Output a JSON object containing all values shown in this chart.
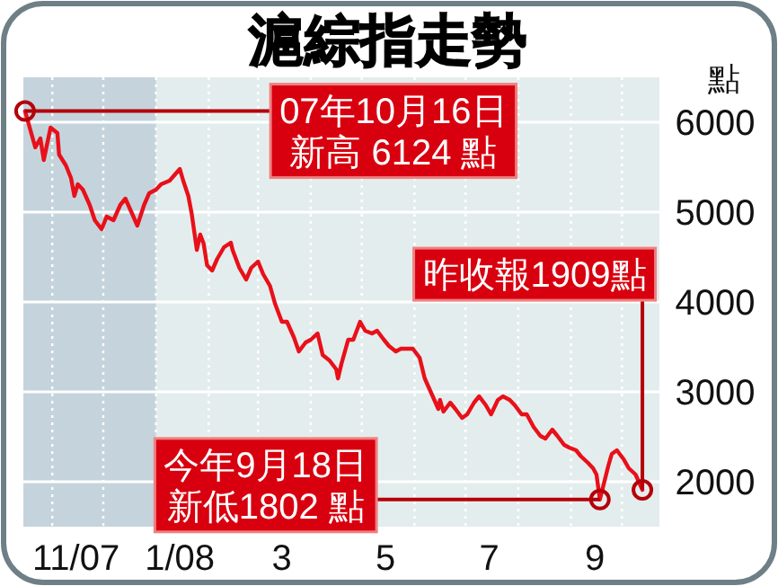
{
  "chart_data": {
    "type": "line",
    "title": "滬綜指走勢",
    "ylabel": "點",
    "xlim": [
      "2007-10-15",
      "2008-10-23"
    ],
    "ylim": [
      1500,
      6500
    ],
    "yticks": [
      2000,
      3000,
      4000,
      5000,
      6000
    ],
    "xticks": [
      {
        "value": "2007-11-01",
        "label": null
      },
      {
        "value": "2007-12-01",
        "label": null
      },
      {
        "value": "2008-01-01",
        "label": null
      },
      {
        "value": "2008-02-01",
        "label": null
      },
      {
        "value": "2008-03-01",
        "label": null
      },
      {
        "value": "2008-04-01",
        "label": null
      },
      {
        "value": "2008-05-01",
        "label": null
      },
      {
        "value": "2008-06-01",
        "label": null
      },
      {
        "value": "2008-07-01",
        "label": null
      },
      {
        "value": "2008-08-01",
        "label": null
      },
      {
        "value": "2008-09-01",
        "label": null
      },
      {
        "value": "2008-10-01",
        "label": null
      },
      {
        "value": "2007-11-15",
        "label": "11/07"
      },
      {
        "value": "2008-01-15",
        "label": "1/08"
      },
      {
        "value": "2008-03-15",
        "label": "3"
      },
      {
        "value": "2008-05-15",
        "label": "5"
      },
      {
        "value": "2008-07-15",
        "label": "7"
      },
      {
        "value": "2008-09-15",
        "label": "9"
      }
    ],
    "grid": true,
    "bands": [
      {
        "axis": "x",
        "from": "2007-10-15",
        "to": "2008-01-01",
        "color": "#c5d4dc"
      }
    ],
    "x": [
      "2007-10-16",
      "2007-10-22",
      "2007-10-25",
      "2007-10-27",
      "2007-10-31",
      "2007-11-04",
      "2007-11-05",
      "2007-11-09",
      "2007-11-12",
      "2007-11-14",
      "2007-11-16",
      "2007-11-19",
      "2007-11-23",
      "2007-11-26",
      "2007-11-30",
      "2007-12-03",
      "2007-12-07",
      "2007-12-11",
      "2007-12-14",
      "2007-12-18",
      "2007-12-21",
      "2007-12-25",
      "2007-12-28",
      "2008-01-01",
      "2008-01-04",
      "2008-01-09",
      "2008-01-15",
      "2008-01-17",
      "2008-01-20",
      "2008-01-22",
      "2008-01-25",
      "2008-01-27",
      "2008-01-29",
      "2008-01-31",
      "2008-02-03",
      "2008-02-06",
      "2008-02-10",
      "2008-02-14",
      "2008-02-15",
      "2008-02-19",
      "2008-02-23",
      "2008-02-26",
      "2008-03-01",
      "2008-03-04",
      "2008-03-08",
      "2008-03-11",
      "2008-03-15",
      "2008-03-18",
      "2008-03-22",
      "2008-03-25",
      "2008-03-29",
      "2008-04-01",
      "2008-04-05",
      "2008-04-08",
      "2008-04-12",
      "2008-04-16",
      "2008-04-17",
      "2008-04-19",
      "2008-04-23",
      "2008-04-26",
      "2008-04-30",
      "2008-05-03",
      "2008-05-07",
      "2008-05-10",
      "2008-05-14",
      "2008-05-17",
      "2008-05-21",
      "2008-05-24",
      "2008-05-31",
      "2008-06-04",
      "2008-06-07",
      "2008-06-11",
      "2008-06-15",
      "2008-06-16",
      "2008-06-18",
      "2008-06-22",
      "2008-06-25",
      "2008-06-29",
      "2008-07-02",
      "2008-07-06",
      "2008-07-09",
      "2008-07-13",
      "2008-07-16",
      "2008-07-20",
      "2008-07-23",
      "2008-07-27",
      "2008-07-30",
      "2008-08-03",
      "2008-08-06",
      "2008-08-10",
      "2008-08-14",
      "2008-08-17",
      "2008-08-21",
      "2008-08-24",
      "2008-08-28",
      "2008-08-31",
      "2008-09-04",
      "2008-09-07",
      "2008-09-11",
      "2008-09-14",
      "2008-09-16",
      "2008-09-18",
      "2008-09-23",
      "2008-09-25",
      "2008-09-28",
      "2008-10-02",
      "2008-10-05",
      "2008-10-09",
      "2008-10-13"
    ],
    "series": [
      {
        "color": "#e8101a",
        "values": [
          6124,
          5720,
          5820,
          5580,
          5940,
          5880,
          5640,
          5520,
          5380,
          5180,
          5310,
          5250,
          5080,
          4910,
          4810,
          4950,
          4910,
          5080,
          5150,
          4980,
          4850,
          5080,
          5210,
          5250,
          5310,
          5350,
          5480,
          5350,
          5180,
          4980,
          4580,
          4750,
          4650,
          4410,
          4350,
          4480,
          4610,
          4660,
          4580,
          4380,
          4250,
          4380,
          4450,
          4310,
          4180,
          3980,
          3780,
          3780,
          3610,
          3450,
          3550,
          3580,
          3650,
          3410,
          3350,
          3250,
          3150,
          3310,
          3580,
          3580,
          3780,
          3680,
          3650,
          3680,
          3580,
          3510,
          3450,
          3480,
          3480,
          3380,
          3150,
          2980,
          2810,
          2910,
          2780,
          2880,
          2810,
          2710,
          2750,
          2880,
          2950,
          2850,
          2750,
          2910,
          2950,
          2910,
          2850,
          2750,
          2750,
          2610,
          2510,
          2480,
          2580,
          2510,
          2410,
          2380,
          2350,
          2280,
          2210,
          2150,
          2080,
          1802,
          2180,
          2310,
          2350,
          2250,
          2150,
          2080,
          1909
        ]
      }
    ],
    "annotations": [
      {
        "text": "07年10月16日新高 6124 點",
        "x": "2007-10-16",
        "y": 6124
      },
      {
        "text": "昨收報1909點",
        "x": "2008-10-13",
        "y": 1909
      },
      {
        "text": "今年9月18日新低1802 點",
        "x": "2008-09-18",
        "y": 1802
      }
    ]
  }
}
